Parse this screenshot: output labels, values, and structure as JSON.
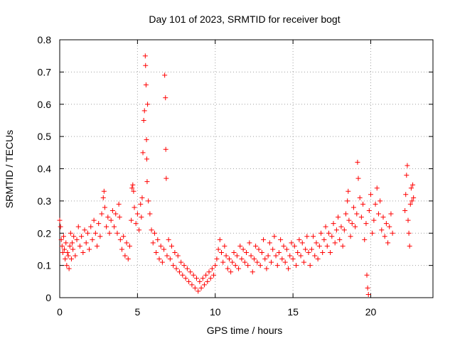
{
  "chart_data": {
    "type": "scatter",
    "title": "Day 101 of 2023, SRMTID for receiver bogt",
    "xlabel": "GPS time / hours",
    "ylabel": "SRMTID / TECUs",
    "xlim": [
      0,
      24
    ],
    "ylim": [
      0,
      0.8
    ],
    "xticks": [
      0,
      5,
      10,
      15,
      20
    ],
    "yticks": [
      0,
      0.1,
      0.2,
      0.3,
      0.4,
      0.5,
      0.6,
      0.7,
      0.8
    ],
    "xtick_labels": [
      "0",
      "5",
      "10",
      "15",
      "20"
    ],
    "ytick_labels": [
      "0",
      "0.1",
      "0.2",
      "0.3",
      "0.4",
      "0.5",
      "0.6",
      "0.7",
      "0.8"
    ],
    "grid": true,
    "marker": "+",
    "series": [
      {
        "name": "SRMTID",
        "color": "#ff0000",
        "points": [
          [
            0.0,
            0.24
          ],
          [
            0.05,
            0.22
          ],
          [
            0.1,
            0.18
          ],
          [
            0.15,
            0.16
          ],
          [
            0.2,
            0.14
          ],
          [
            0.25,
            0.19
          ],
          [
            0.3,
            0.15
          ],
          [
            0.35,
            0.12
          ],
          [
            0.4,
            0.17
          ],
          [
            0.45,
            0.1
          ],
          [
            0.5,
            0.14
          ],
          [
            0.55,
            0.13
          ],
          [
            0.6,
            0.09
          ],
          [
            0.65,
            0.16
          ],
          [
            0.7,
            0.2
          ],
          [
            0.75,
            0.12
          ],
          [
            0.8,
            0.17
          ],
          [
            0.85,
            0.15
          ],
          [
            0.9,
            0.19
          ],
          [
            1.0,
            0.13
          ],
          [
            1.1,
            0.18
          ],
          [
            1.2,
            0.22
          ],
          [
            1.3,
            0.16
          ],
          [
            1.4,
            0.19
          ],
          [
            1.5,
            0.14
          ],
          [
            1.6,
            0.21
          ],
          [
            1.7,
            0.17
          ],
          [
            1.8,
            0.2
          ],
          [
            1.9,
            0.15
          ],
          [
            2.0,
            0.22
          ],
          [
            2.1,
            0.18
          ],
          [
            2.2,
            0.24
          ],
          [
            2.3,
            0.2
          ],
          [
            2.4,
            0.16
          ],
          [
            2.5,
            0.23
          ],
          [
            2.6,
            0.19
          ],
          [
            2.7,
            0.26
          ],
          [
            2.8,
            0.31
          ],
          [
            2.85,
            0.33
          ],
          [
            2.9,
            0.28
          ],
          [
            3.0,
            0.22
          ],
          [
            3.1,
            0.25
          ],
          [
            3.2,
            0.2
          ],
          [
            3.3,
            0.24
          ],
          [
            3.4,
            0.27
          ],
          [
            3.5,
            0.22
          ],
          [
            3.6,
            0.26
          ],
          [
            3.7,
            0.2
          ],
          [
            3.8,
            0.29
          ],
          [
            3.85,
            0.25
          ],
          [
            3.9,
            0.18
          ],
          [
            4.0,
            0.15
          ],
          [
            4.1,
            0.19
          ],
          [
            4.2,
            0.13
          ],
          [
            4.3,
            0.17
          ],
          [
            4.4,
            0.12
          ],
          [
            4.5,
            0.16
          ],
          [
            4.6,
            0.24
          ],
          [
            4.65,
            0.34
          ],
          [
            4.7,
            0.35
          ],
          [
            4.75,
            0.33
          ],
          [
            4.8,
            0.28
          ],
          [
            4.9,
            0.23
          ],
          [
            5.0,
            0.26
          ],
          [
            5.1,
            0.21
          ],
          [
            5.2,
            0.29
          ],
          [
            5.25,
            0.25
          ],
          [
            5.3,
            0.31
          ],
          [
            5.35,
            0.45
          ],
          [
            5.4,
            0.55
          ],
          [
            5.45,
            0.58
          ],
          [
            5.5,
            0.75
          ],
          [
            5.52,
            0.72
          ],
          [
            5.55,
            0.66
          ],
          [
            5.58,
            0.49
          ],
          [
            5.6,
            0.43
          ],
          [
            5.62,
            0.36
          ],
          [
            5.65,
            0.6
          ],
          [
            5.7,
            0.3
          ],
          [
            5.8,
            0.26
          ],
          [
            5.9,
            0.21
          ],
          [
            6.0,
            0.17
          ],
          [
            6.1,
            0.2
          ],
          [
            6.2,
            0.14
          ],
          [
            6.3,
            0.18
          ],
          [
            6.4,
            0.12
          ],
          [
            6.5,
            0.16
          ],
          [
            6.6,
            0.11
          ],
          [
            6.7,
            0.15
          ],
          [
            6.75,
            0.69
          ],
          [
            6.8,
            0.62
          ],
          [
            6.82,
            0.46
          ],
          [
            6.85,
            0.37
          ],
          [
            6.9,
            0.13
          ],
          [
            7.0,
            0.18
          ],
          [
            7.1,
            0.12
          ],
          [
            7.2,
            0.16
          ],
          [
            7.3,
            0.1
          ],
          [
            7.4,
            0.14
          ],
          [
            7.5,
            0.09
          ],
          [
            7.6,
            0.13
          ],
          [
            7.7,
            0.08
          ],
          [
            7.8,
            0.11
          ],
          [
            7.9,
            0.07
          ],
          [
            8.0,
            0.1
          ],
          [
            8.1,
            0.06
          ],
          [
            8.2,
            0.09
          ],
          [
            8.3,
            0.05
          ],
          [
            8.4,
            0.08
          ],
          [
            8.5,
            0.04
          ],
          [
            8.6,
            0.07
          ],
          [
            8.7,
            0.03
          ],
          [
            8.8,
            0.06
          ],
          [
            8.9,
            0.02
          ],
          [
            9.0,
            0.05
          ],
          [
            9.1,
            0.03
          ],
          [
            9.2,
            0.06
          ],
          [
            9.3,
            0.04
          ],
          [
            9.4,
            0.07
          ],
          [
            9.5,
            0.05
          ],
          [
            9.6,
            0.08
          ],
          [
            9.7,
            0.06
          ],
          [
            9.8,
            0.09
          ],
          [
            9.9,
            0.07
          ],
          [
            10.0,
            0.1
          ],
          [
            10.1,
            0.12
          ],
          [
            10.2,
            0.15
          ],
          [
            10.3,
            0.18
          ],
          [
            10.4,
            0.14
          ],
          [
            10.5,
            0.11
          ],
          [
            10.6,
            0.16
          ],
          [
            10.7,
            0.13
          ],
          [
            10.8,
            0.09
          ],
          [
            10.9,
            0.12
          ],
          [
            11.0,
            0.08
          ],
          [
            11.1,
            0.11
          ],
          [
            11.2,
            0.14
          ],
          [
            11.3,
            0.1
          ],
          [
            11.4,
            0.13
          ],
          [
            11.5,
            0.09
          ],
          [
            11.6,
            0.16
          ],
          [
            11.7,
            0.12
          ],
          [
            11.8,
            0.15
          ],
          [
            11.9,
            0.11
          ],
          [
            12.0,
            0.14
          ],
          [
            12.1,
            0.1
          ],
          [
            12.2,
            0.17
          ],
          [
            12.3,
            0.13
          ],
          [
            12.4,
            0.08
          ],
          [
            12.5,
            0.12
          ],
          [
            12.6,
            0.16
          ],
          [
            12.7,
            0.11
          ],
          [
            12.8,
            0.15
          ],
          [
            12.9,
            0.1
          ],
          [
            13.0,
            0.14
          ],
          [
            13.1,
            0.18
          ],
          [
            13.2,
            0.12
          ],
          [
            13.3,
            0.09
          ],
          [
            13.4,
            0.13
          ],
          [
            13.5,
            0.17
          ],
          [
            13.6,
            0.11
          ],
          [
            13.7,
            0.15
          ],
          [
            13.8,
            0.19
          ],
          [
            13.9,
            0.13
          ],
          [
            14.0,
            0.1
          ],
          [
            14.1,
            0.14
          ],
          [
            14.2,
            0.18
          ],
          [
            14.3,
            0.12
          ],
          [
            14.4,
            0.16
          ],
          [
            14.5,
            0.11
          ],
          [
            14.6,
            0.15
          ],
          [
            14.7,
            0.09
          ],
          [
            14.8,
            0.13
          ],
          [
            14.9,
            0.17
          ],
          [
            15.0,
            0.12
          ],
          [
            15.1,
            0.16
          ],
          [
            15.2,
            0.1
          ],
          [
            15.3,
            0.14
          ],
          [
            15.4,
            0.18
          ],
          [
            15.5,
            0.13
          ],
          [
            15.6,
            0.17
          ],
          [
            15.7,
            0.11
          ],
          [
            15.8,
            0.15
          ],
          [
            15.9,
            0.19
          ],
          [
            16.0,
            0.14
          ],
          [
            16.1,
            0.1
          ],
          [
            16.2,
            0.15
          ],
          [
            16.3,
            0.19
          ],
          [
            16.4,
            0.13
          ],
          [
            16.5,
            0.17
          ],
          [
            16.6,
            0.12
          ],
          [
            16.7,
            0.16
          ],
          [
            16.8,
            0.2
          ],
          [
            16.9,
            0.14
          ],
          [
            17.0,
            0.18
          ],
          [
            17.1,
            0.22
          ],
          [
            17.2,
            0.16
          ],
          [
            17.3,
            0.2
          ],
          [
            17.4,
            0.14
          ],
          [
            17.5,
            0.19
          ],
          [
            17.6,
            0.23
          ],
          [
            17.7,
            0.17
          ],
          [
            17.8,
            0.21
          ],
          [
            17.9,
            0.25
          ],
          [
            18.0,
            0.18
          ],
          [
            18.1,
            0.22
          ],
          [
            18.2,
            0.16
          ],
          [
            18.3,
            0.21
          ],
          [
            18.4,
            0.26
          ],
          [
            18.5,
            0.3
          ],
          [
            18.55,
            0.33
          ],
          [
            18.6,
            0.24
          ],
          [
            18.7,
            0.19
          ],
          [
            18.8,
            0.23
          ],
          [
            18.9,
            0.28
          ],
          [
            19.0,
            0.22
          ],
          [
            19.1,
            0.26
          ],
          [
            19.15,
            0.42
          ],
          [
            19.2,
            0.37
          ],
          [
            19.3,
            0.31
          ],
          [
            19.4,
            0.25
          ],
          [
            19.5,
            0.29
          ],
          [
            19.6,
            0.18
          ],
          [
            19.7,
            0.23
          ],
          [
            19.75,
            0.07
          ],
          [
            19.8,
            0.03
          ],
          [
            19.85,
            0.01
          ],
          [
            19.9,
            0.27
          ],
          [
            20.0,
            0.32
          ],
          [
            20.1,
            0.2
          ],
          [
            20.2,
            0.24
          ],
          [
            20.3,
            0.29
          ],
          [
            20.4,
            0.34
          ],
          [
            20.5,
            0.26
          ],
          [
            20.6,
            0.3
          ],
          [
            20.7,
            0.21
          ],
          [
            20.8,
            0.25
          ],
          [
            20.9,
            0.19
          ],
          [
            21.0,
            0.23
          ],
          [
            21.1,
            0.17
          ],
          [
            21.2,
            0.22
          ],
          [
            21.3,
            0.26
          ],
          [
            21.4,
            0.2
          ],
          [
            22.2,
            0.27
          ],
          [
            22.25,
            0.32
          ],
          [
            22.3,
            0.38
          ],
          [
            22.35,
            0.41
          ],
          [
            22.4,
            0.24
          ],
          [
            22.45,
            0.2
          ],
          [
            22.5,
            0.16
          ],
          [
            22.55,
            0.29
          ],
          [
            22.6,
            0.34
          ],
          [
            22.65,
            0.3
          ],
          [
            22.7,
            0.35
          ],
          [
            22.75,
            0.31
          ]
        ]
      }
    ]
  }
}
